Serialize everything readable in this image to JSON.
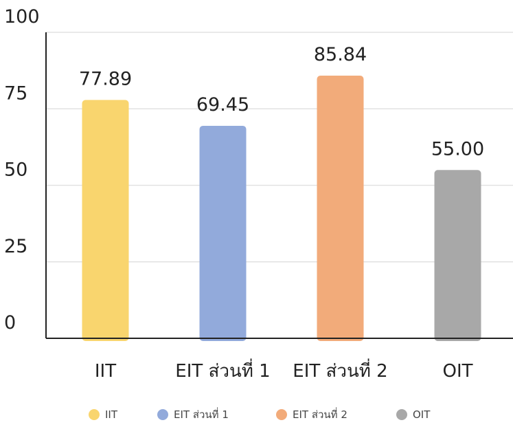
{
  "chart_data": {
    "type": "bar",
    "title": "",
    "xlabel": "",
    "ylabel": "",
    "categories": [
      "IIT",
      "EIT ส่วนที่ 1",
      "EIT ส่วนที่ 2",
      "OIT"
    ],
    "values": [
      77.89,
      69.45,
      85.84,
      55.0
    ],
    "value_labels": [
      "77.89",
      "69.45",
      "85.84",
      "55.00"
    ],
    "colors": [
      "#F9D56E",
      "#92AADB",
      "#F2AB7A",
      "#A8A8A8"
    ],
    "ylim": [
      0,
      100
    ],
    "yticks": [
      0,
      25,
      50,
      75,
      100
    ],
    "ytick_labels": [
      "0",
      "25",
      "50",
      "75",
      "100"
    ],
    "grid": true,
    "legend": {
      "position": "bottom",
      "entries": [
        "IIT",
        "EIT ส่วนที่ 1",
        "EIT ส่วนที่ 2",
        "OIT"
      ]
    }
  }
}
